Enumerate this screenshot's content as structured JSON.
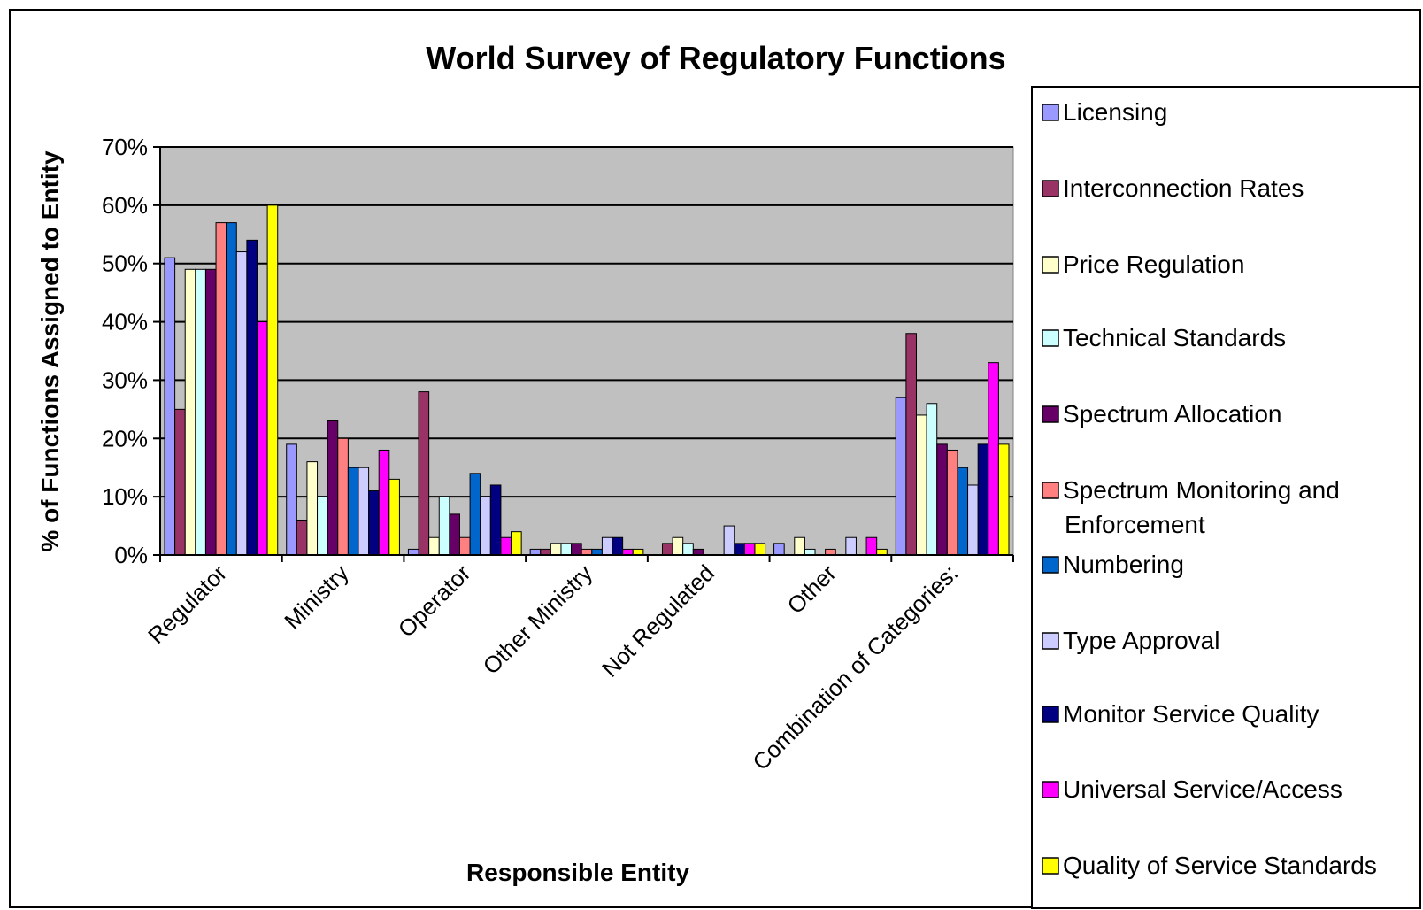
{
  "chart_data": {
    "type": "bar",
    "title": "World Survey of Regulatory Functions",
    "xlabel": "Responsible Entity",
    "ylabel": "% of Functions Assigned to Entity",
    "ylim": [
      0,
      70
    ],
    "yticks": [
      "0%",
      "10%",
      "20%",
      "30%",
      "40%",
      "50%",
      "60%",
      "70%"
    ],
    "grid": true,
    "legend_position": "right",
    "plot_background": "#C0C0C0",
    "categories": [
      "Regulator",
      "Ministry",
      "Operator",
      "Other Ministry",
      "Not Regulated",
      "Other",
      "Combination of Categories:"
    ],
    "series": [
      {
        "name": "Licensing",
        "color": "#9999FF",
        "values": [
          51,
          19,
          1,
          1,
          0,
          2,
          27
        ]
      },
      {
        "name": "Interconnection Rates",
        "color": "#993366",
        "values": [
          25,
          6,
          28,
          1,
          2,
          0,
          38
        ]
      },
      {
        "name": "Price Regulation",
        "color": "#FFFFCC",
        "values": [
          49,
          16,
          3,
          2,
          3,
          3,
          24
        ]
      },
      {
        "name": "Technical Standards",
        "color": "#CCFFFF",
        "values": [
          49,
          10,
          10,
          2,
          2,
          1,
          26
        ]
      },
      {
        "name": "Spectrum Allocation",
        "color": "#660066",
        "values": [
          49,
          23,
          7,
          2,
          1,
          0,
          19
        ]
      },
      {
        "name": "Spectrum Monitoring and Enforcement",
        "color": "#FF8080",
        "values": [
          57,
          20,
          3,
          1,
          0,
          1,
          18
        ]
      },
      {
        "name": "Numbering",
        "color": "#0066CC",
        "values": [
          57,
          15,
          14,
          1,
          0,
          0,
          15
        ]
      },
      {
        "name": "Type Approval",
        "color": "#CCCCFF",
        "values": [
          52,
          15,
          10,
          3,
          5,
          3,
          12
        ]
      },
      {
        "name": "Monitor Service Quality",
        "color": "#000080",
        "values": [
          54,
          11,
          12,
          3,
          2,
          0,
          19
        ]
      },
      {
        "name": "Universal Service/Access",
        "color": "#FF00FF",
        "values": [
          40,
          18,
          3,
          1,
          2,
          3,
          33
        ]
      },
      {
        "name": "Quality of Service Standards",
        "color": "#FFFF00",
        "values": [
          60,
          13,
          4,
          1,
          2,
          1,
          19
        ]
      }
    ],
    "legend_labels": [
      [
        "Licensing"
      ],
      [
        "Interconnection Rates"
      ],
      [
        "Price Regulation"
      ],
      [
        "Technical Standards"
      ],
      [
        "Spectrum Allocation"
      ],
      [
        "Spectrum Monitoring and",
        "Enforcement"
      ],
      [
        "Numbering"
      ],
      [
        "Type Approval"
      ],
      [
        "Monitor Service Quality"
      ],
      [
        "Universal Service/Access"
      ],
      [
        "Quality of Service Standards"
      ]
    ]
  }
}
